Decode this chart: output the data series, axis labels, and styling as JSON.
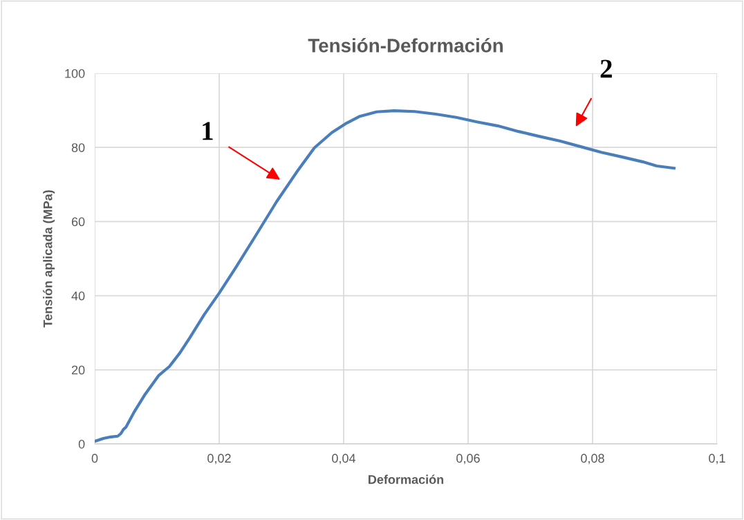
{
  "chart_data": {
    "type": "line",
    "title": "Tensión-Deformación",
    "xlabel": "Deformación",
    "ylabel": "Tensión aplicada (MPa)",
    "x": [
      0,
      0.0014,
      0.0026,
      0.0037,
      0.0042,
      0.0046,
      0.005,
      0.0064,
      0.0081,
      0.0103,
      0.012,
      0.0137,
      0.0153,
      0.0176,
      0.02,
      0.0226,
      0.0259,
      0.0292,
      0.0326,
      0.0353,
      0.0381,
      0.0403,
      0.0426,
      0.0453,
      0.0481,
      0.0514,
      0.0548,
      0.0581,
      0.0614,
      0.0648,
      0.0681,
      0.0714,
      0.0748,
      0.0781,
      0.0814,
      0.0848,
      0.0881,
      0.0903,
      0.0931
    ],
    "series": [
      {
        "color": "#4a7ebb",
        "values": [
          0.7,
          1.5,
          1.9,
          2.1,
          2.8,
          3.9,
          4.5,
          8.8,
          13.4,
          18.5,
          20.9,
          24.6,
          28.7,
          34.9,
          40.7,
          47.4,
          56.3,
          65.3,
          73.7,
          79.9,
          84,
          86.4,
          88.4,
          89.6,
          89.9,
          89.7,
          89,
          88.1,
          86.9,
          85.8,
          84.3,
          83,
          81.7,
          80.2,
          78.7,
          77.4,
          76.1,
          75,
          74.4
        ]
      }
    ],
    "xlim": [
      0,
      0.1
    ],
    "xticks": [
      {
        "value": 0,
        "label": "0"
      },
      {
        "value": 0.02,
        "label": "0,02"
      },
      {
        "value": 0.04,
        "label": "0,04"
      },
      {
        "value": 0.06,
        "label": "0,06"
      },
      {
        "value": 0.08,
        "label": "0,08"
      },
      {
        "value": 0.1,
        "label": "0,1"
      }
    ],
    "ylim": [
      0,
      100
    ],
    "yticks": [
      0,
      20,
      40,
      60,
      80,
      100
    ],
    "grid": true,
    "legend": false,
    "marker": "none",
    "line_style": "solid",
    "annotations": [
      "1",
      "2"
    ]
  }
}
